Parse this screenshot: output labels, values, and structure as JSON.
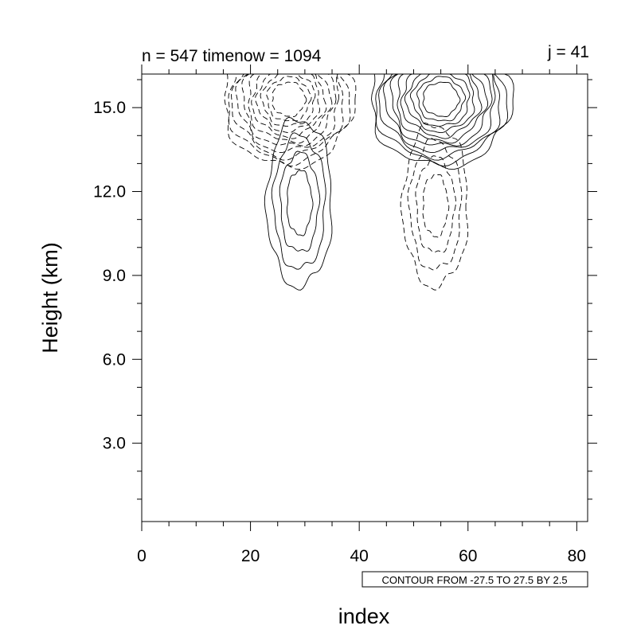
{
  "chart_data": {
    "type": "contour",
    "title_left": "n = 547 timenow = 1094",
    "title_right": "j = 41",
    "xlabel": "index",
    "ylabel": "Height (km)",
    "xlim": [
      0,
      82
    ],
    "ylim": [
      0.2,
      16.2
    ],
    "x_ticks": [
      {
        "value": 0,
        "label": "0"
      },
      {
        "value": 20,
        "label": "20"
      },
      {
        "value": 40,
        "label": "40"
      },
      {
        "value": 60,
        "label": "60"
      },
      {
        "value": 80,
        "label": "80"
      }
    ],
    "y_ticks": [
      {
        "value": 3,
        "label": "3.0"
      },
      {
        "value": 6,
        "label": "6.0"
      },
      {
        "value": 9,
        "label": "9.0"
      },
      {
        "value": 12,
        "label": "12.0"
      },
      {
        "value": 15,
        "label": "15.0"
      }
    ],
    "x_minor_step": 5,
    "y_minor_step": 1,
    "contour_info": "CONTOUR FROM -27.5 TO 27.5 BY 2.5",
    "contour_range": [
      -27.5,
      27.5
    ],
    "contour_interval": 2.5,
    "negative_contours": "dashed",
    "positive_contours": "solid",
    "grid": false,
    "features": [
      {
        "name": "upper-negative-cell",
        "sign": -1,
        "center": [
          27,
          15.3
        ],
        "rx": 12,
        "ry": 2.4,
        "levels": 11,
        "extends_to_top": true
      },
      {
        "name": "upper-positive-cell",
        "sign": 1,
        "center": [
          55,
          15.3
        ],
        "rx": 13,
        "ry": 2.4,
        "levels": 11,
        "extends_to_top": true
      },
      {
        "name": "lower-positive-cell",
        "sign": 1,
        "center": [
          29,
          11.6
        ],
        "rx": 6,
        "ry": 3.0,
        "levels": 4
      },
      {
        "name": "lower-negative-cell",
        "sign": -1,
        "center": [
          54,
          11.5
        ],
        "rx": 6,
        "ry": 2.9,
        "levels": 4
      }
    ]
  }
}
